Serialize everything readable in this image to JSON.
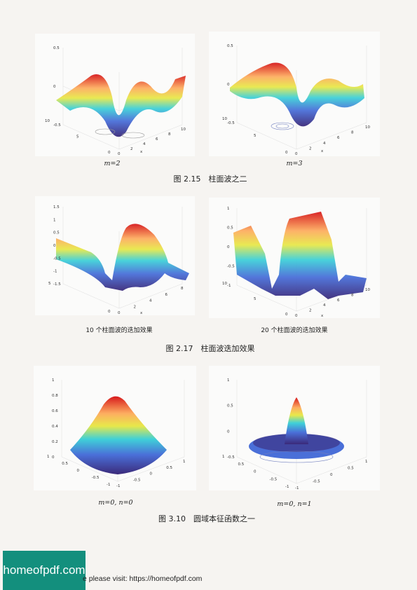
{
  "figures": [
    {
      "caption": "图 2.15　柱面波之二",
      "panels": [
        {
          "id": "p1",
          "subcaption": "m=2",
          "zticks": [
            "0.5",
            "0",
            "-0.5"
          ],
          "yticks": [
            "10",
            "5",
            "0"
          ],
          "xticks": [
            "0",
            "2",
            "4",
            "6",
            "8",
            "10"
          ],
          "xlabel": "x"
        },
        {
          "id": "p2",
          "subcaption": "m=3",
          "zticks": [
            "0.5",
            "0",
            "-0.5"
          ],
          "yticks": [
            "10",
            "5",
            "0"
          ],
          "xticks": [
            "0",
            "2",
            "4",
            "6",
            "8",
            "10"
          ],
          "xlabel": "x"
        }
      ]
    },
    {
      "caption": "图 2.17　柱面波迭加效果",
      "panels": [
        {
          "id": "p3",
          "subcaption": "10 个柱面波的迭加效果",
          "zticks": [
            "1.5",
            "1",
            "0.5",
            "0",
            "-0.5",
            "-1",
            "-1.5"
          ],
          "yticks": [
            "5",
            "0"
          ],
          "xticks": [
            "0",
            "2",
            "4",
            "6",
            "8"
          ],
          "xlabel": "x"
        },
        {
          "id": "p4",
          "subcaption": "20 个柱面波的迭加效果",
          "zticks": [
            "1",
            "0.5",
            "0",
            "-0.5",
            "-1"
          ],
          "yticks": [
            "10",
            "5",
            "0"
          ],
          "xticks": [
            "0",
            "2",
            "4",
            "6",
            "8",
            "10"
          ],
          "xlabel": "x"
        }
      ]
    },
    {
      "caption": "图 3.10　圆域本征函数之一",
      "panels": [
        {
          "id": "p5",
          "subcaption": "m=0, n=0",
          "zticks": [
            "1",
            "0.8",
            "0.6",
            "0.4",
            "0.2",
            "0"
          ],
          "yticks": [
            "1",
            "0.5",
            "0",
            "-0.5",
            "-1"
          ],
          "xticks": [
            "-1",
            "-0.5",
            "0",
            "0.5",
            "1"
          ],
          "xlabel": ""
        },
        {
          "id": "p6",
          "subcaption": "m=0, n=1",
          "zticks": [
            "1",
            "0.5",
            "0",
            "-0.5"
          ],
          "yticks": [
            "1",
            "0.5",
            "0",
            "-0.5",
            "-1"
          ],
          "xticks": [
            "-1",
            "-0.5",
            "0",
            "0.5",
            "1"
          ],
          "xlabel": ""
        }
      ]
    }
  ],
  "watermark": {
    "logo": "homeofpdf.com",
    "text": "e please visit: https://homeofpdf.com"
  },
  "colors": {
    "top": "#d7191c",
    "mid": "#3fd0d8",
    "bottom": "#3b2a7a"
  }
}
